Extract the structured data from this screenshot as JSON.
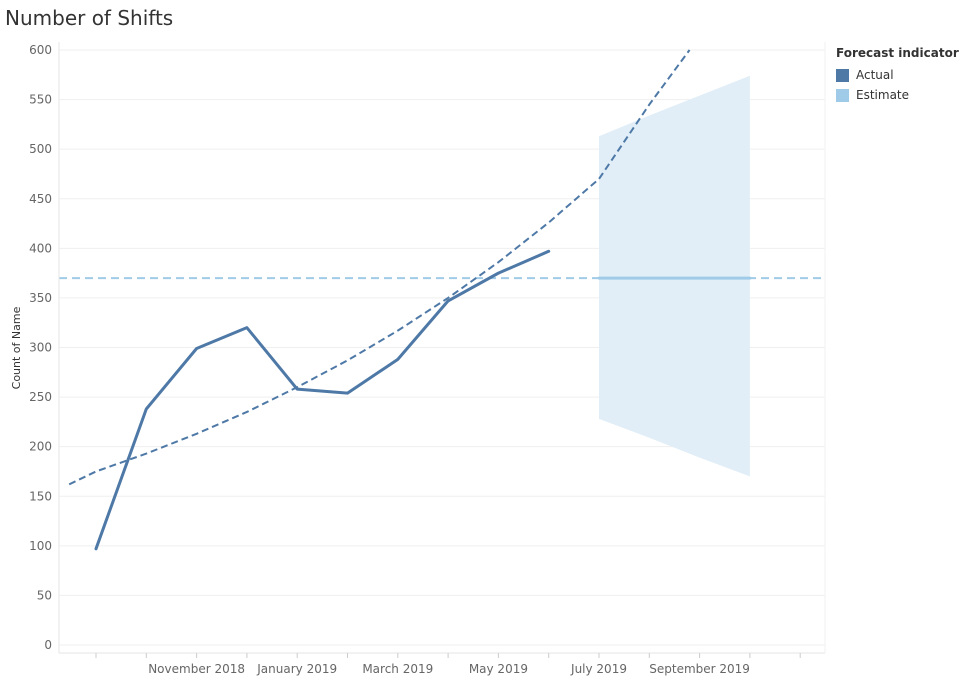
{
  "title": "Number of Shifts",
  "chart_data": {
    "type": "line",
    "title": "Number of Shifts",
    "xlabel": "",
    "ylabel": "Count of Name",
    "ylim": [
      0,
      600
    ],
    "yticks": [
      0,
      50,
      100,
      150,
      200,
      250,
      300,
      350,
      400,
      450,
      500,
      550,
      600
    ],
    "x_tick_labels": [
      "November 2018",
      "January 2019",
      "March 2019",
      "May 2019",
      "July 2019",
      "September 2019"
    ],
    "x": [
      "2018-09",
      "2018-10",
      "2018-11",
      "2018-12",
      "2019-01",
      "2019-02",
      "2019-03",
      "2019-04",
      "2019-05",
      "2019-06",
      "2019-07",
      "2019-08",
      "2019-09",
      "2019-10"
    ],
    "series": [
      {
        "name": "Actual",
        "color": "#4e79a7",
        "values": [
          97,
          238,
          299,
          320,
          258,
          254,
          288,
          347,
          375,
          397,
          null,
          null,
          null,
          null
        ]
      },
      {
        "name": "Estimate",
        "color": "#a0cbe8",
        "values": [
          null,
          null,
          null,
          null,
          null,
          null,
          null,
          null,
          null,
          null,
          370,
          370,
          370,
          370
        ]
      }
    ],
    "forecast_band": {
      "x": [
        "2019-07",
        "2019-08",
        "2019-09",
        "2019-10"
      ],
      "upper": [
        513,
        534,
        554,
        574
      ],
      "lower": [
        228,
        209,
        189,
        170
      ],
      "color": "#e1eef7"
    },
    "trend_line": {
      "style": "dashed",
      "color": "#4e79a7",
      "x": [
        "2018-08-15",
        "2018-09",
        "2018-10",
        "2018-11",
        "2018-12",
        "2019-01",
        "2019-02",
        "2019-03",
        "2019-04",
        "2019-05",
        "2019-06",
        "2019-07",
        "2019-08",
        "2019-08-25"
      ],
      "values": [
        162,
        175,
        193,
        213,
        235,
        260,
        287,
        317,
        350,
        386,
        426,
        470,
        545,
        600
      ]
    },
    "reference_line": {
      "value": 370,
      "style": "dashed",
      "color": "#a0cbe8"
    },
    "legend": {
      "title": "Forecast indicator",
      "placement": "right",
      "items": [
        {
          "label": "Actual",
          "color": "#4e79a7"
        },
        {
          "label": "Estimate",
          "color": "#a0cbe8"
        }
      ]
    },
    "grid": true
  }
}
